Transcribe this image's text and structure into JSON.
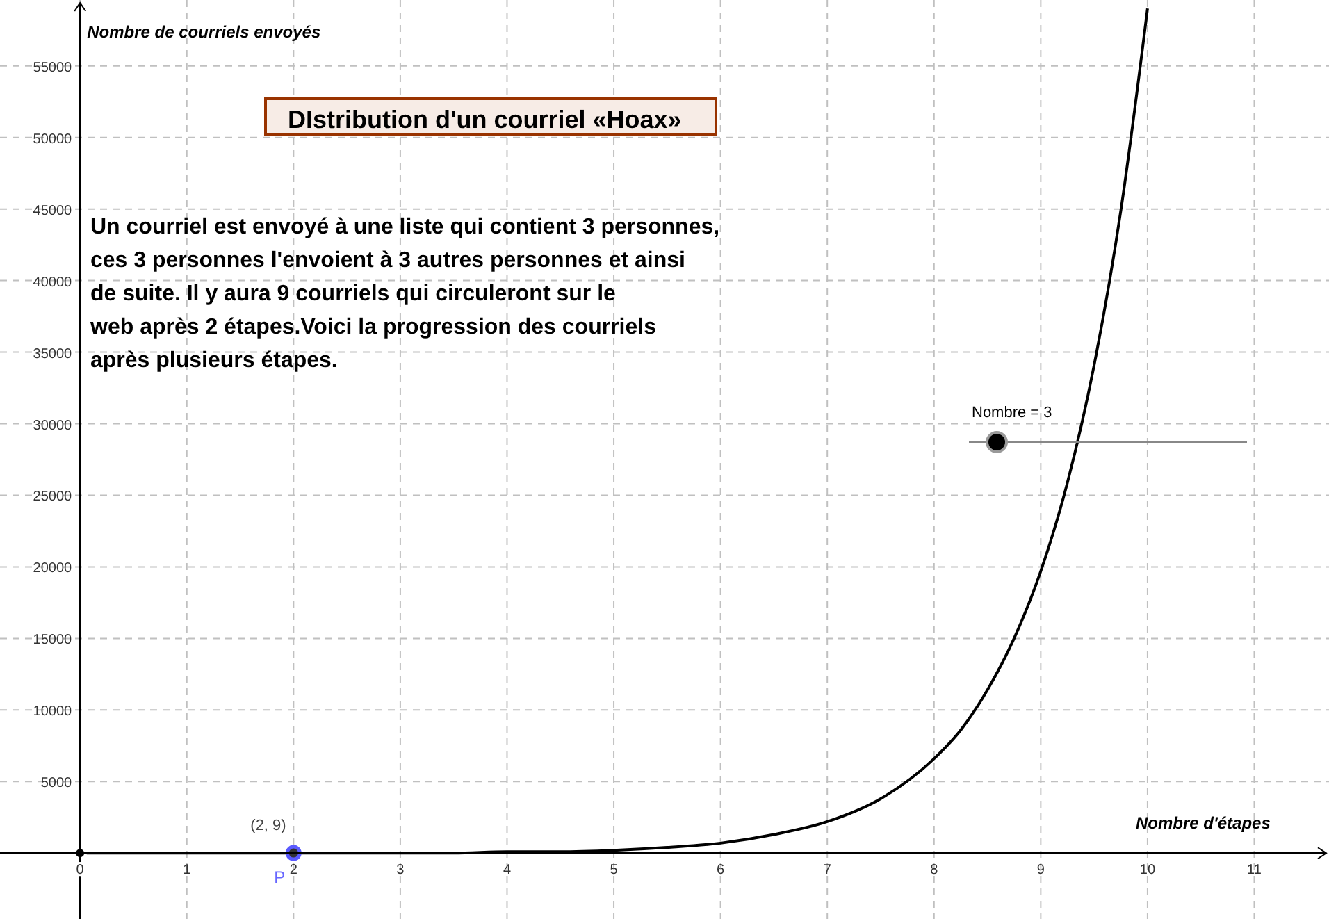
{
  "chart_data": {
    "type": "line",
    "title": "DIstribution d'un courriel «Hoax»",
    "xlabel": "Nombre d'étapes",
    "ylabel": "Nombre de courriels envoyés",
    "annotations": [
      "Un courriel est envoyé à une liste qui contient 3 personnes,\nces 3 personnes l'envoient à 3 autres personnes et ainsi\nde suite. Il y aura 9 courriels qui circuleront sur le\nweb après 2 étapes.Voici la progression des courriels\naprès plusieurs étapes.",
      "Nombre = 3",
      {
        "text": "(2, 9)",
        "x": 2,
        "y": 9
      },
      {
        "text": "P",
        "x": 2,
        "y": 9
      }
    ],
    "xlim": [
      -0.75,
      11.7
    ],
    "ylim": [
      -4600,
      59600
    ],
    "xticks": [
      0,
      1,
      2,
      3,
      4,
      5,
      6,
      7,
      8,
      9,
      10,
      11
    ],
    "yticks": [
      5000,
      10000,
      15000,
      20000,
      25000,
      30000,
      35000,
      40000,
      45000,
      50000,
      55000
    ],
    "grid": true,
    "legend": false,
    "series": [
      {
        "color": "#000000",
        "marker": "none",
        "x": [
          0,
          0.5,
          1,
          1.5,
          2,
          2.5,
          3,
          3.5,
          4,
          4.5,
          5,
          5.5,
          6,
          6.5,
          7,
          7.5,
          8,
          8.25,
          8.5,
          8.75,
          9,
          9.25,
          9.5,
          9.75,
          10
        ],
        "values": [
          0,
          0,
          0,
          0,
          0,
          0,
          0,
          0,
          100,
          100,
          200,
          400,
          700,
          1300,
          2200,
          3800,
          6600,
          8600,
          11400,
          15000,
          19700,
          25900,
          34100,
          44900,
          59000
        ]
      },
      {
        "type": "scatter",
        "color": "#5a5aff",
        "marker": "circle",
        "x": [
          2
        ],
        "values": [
          9
        ]
      }
    ]
  }
}
